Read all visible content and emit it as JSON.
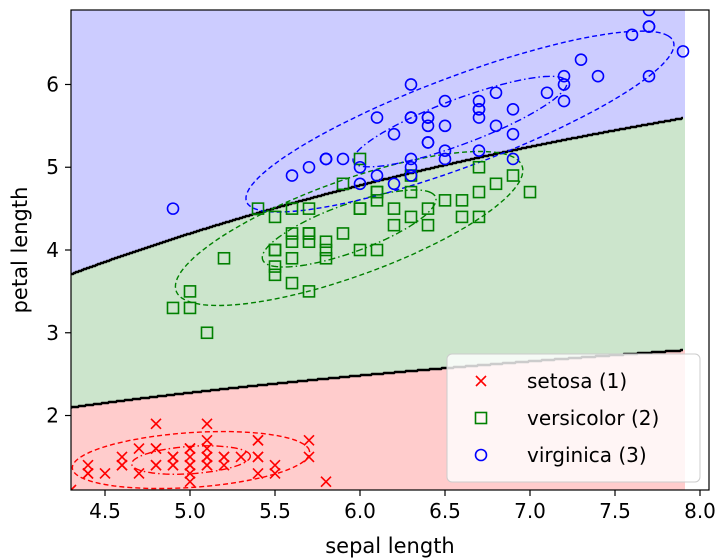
{
  "chart_data": {
    "type": "scatter",
    "title": "",
    "xlabel": "sepal length",
    "ylabel": "petal length",
    "xlim": [
      4.3,
      7.9
    ],
    "ylim": [
      1.1,
      6.9
    ],
    "xticks": [
      4.5,
      5.0,
      5.5,
      6.0,
      6.5,
      7.0,
      7.5,
      8.0
    ],
    "xtick_labels": [
      "4.5",
      "5.0",
      "5.5",
      "6.0",
      "6.5",
      "7.0",
      "7.5",
      "8.0"
    ],
    "yticks": [
      2,
      3,
      4,
      5,
      6
    ],
    "ytick_labels": [
      "2",
      "3",
      "4",
      "5",
      "6"
    ],
    "grid": false,
    "legend_position": "bottom-right",
    "region_colors": {
      "setosa": "#ffcccc",
      "versicolor": "#cce5cc",
      "virginica": "#ccccff"
    },
    "boundary_color": "#000000",
    "series": [
      {
        "name": "setosa (1)",
        "marker": "x",
        "color": "#ff0000",
        "points": [
          [
            5.1,
            1.4
          ],
          [
            4.9,
            1.4
          ],
          [
            4.7,
            1.3
          ],
          [
            4.6,
            1.5
          ],
          [
            5.0,
            1.4
          ],
          [
            5.4,
            1.7
          ],
          [
            4.6,
            1.4
          ],
          [
            5.0,
            1.5
          ],
          [
            4.4,
            1.4
          ],
          [
            4.9,
            1.5
          ],
          [
            5.4,
            1.5
          ],
          [
            4.8,
            1.6
          ],
          [
            4.8,
            1.4
          ],
          [
            4.3,
            1.1
          ],
          [
            5.8,
            1.2
          ],
          [
            5.7,
            1.5
          ],
          [
            5.4,
            1.3
          ],
          [
            5.1,
            1.4
          ],
          [
            5.7,
            1.7
          ],
          [
            5.1,
            1.5
          ],
          [
            5.4,
            1.7
          ],
          [
            5.1,
            1.5
          ],
          [
            4.6,
            1.0
          ],
          [
            5.1,
            1.7
          ],
          [
            4.8,
            1.9
          ],
          [
            5.0,
            1.6
          ],
          [
            5.0,
            1.6
          ],
          [
            5.2,
            1.5
          ],
          [
            5.2,
            1.4
          ],
          [
            4.7,
            1.6
          ],
          [
            4.8,
            1.6
          ],
          [
            5.4,
            1.5
          ],
          [
            5.2,
            1.5
          ],
          [
            5.5,
            1.4
          ],
          [
            4.9,
            1.5
          ],
          [
            5.0,
            1.2
          ],
          [
            5.5,
            1.3
          ],
          [
            4.9,
            1.4
          ],
          [
            4.4,
            1.3
          ],
          [
            5.1,
            1.5
          ],
          [
            5.0,
            1.3
          ],
          [
            4.5,
            1.3
          ],
          [
            4.4,
            1.3
          ],
          [
            5.0,
            1.6
          ],
          [
            5.1,
            1.9
          ],
          [
            4.8,
            1.4
          ],
          [
            5.1,
            1.6
          ],
          [
            4.6,
            1.4
          ],
          [
            5.3,
            1.5
          ],
          [
            5.0,
            1.4
          ]
        ]
      },
      {
        "name": "versicolor (2)",
        "marker": "s",
        "color": "#008000",
        "points": [
          [
            7.0,
            4.7
          ],
          [
            6.4,
            4.5
          ],
          [
            6.9,
            4.9
          ],
          [
            5.5,
            4.0
          ],
          [
            6.5,
            4.6
          ],
          [
            5.7,
            4.5
          ],
          [
            6.3,
            4.7
          ],
          [
            4.9,
            3.3
          ],
          [
            6.6,
            4.6
          ],
          [
            5.2,
            3.9
          ],
          [
            5.0,
            3.5
          ],
          [
            5.9,
            4.2
          ],
          [
            6.0,
            4.0
          ],
          [
            6.1,
            4.7
          ],
          [
            5.6,
            3.6
          ],
          [
            6.7,
            4.4
          ],
          [
            5.6,
            4.5
          ],
          [
            5.8,
            4.1
          ],
          [
            6.2,
            4.5
          ],
          [
            5.6,
            3.9
          ],
          [
            5.9,
            4.8
          ],
          [
            6.1,
            4.0
          ],
          [
            6.3,
            4.9
          ],
          [
            6.1,
            4.7
          ],
          [
            6.4,
            4.3
          ],
          [
            6.6,
            4.4
          ],
          [
            6.8,
            4.8
          ],
          [
            6.7,
            5.0
          ],
          [
            6.0,
            4.5
          ],
          [
            5.7,
            3.5
          ],
          [
            5.5,
            3.8
          ],
          [
            5.5,
            3.7
          ],
          [
            5.8,
            3.9
          ],
          [
            6.0,
            5.1
          ],
          [
            5.4,
            4.5
          ],
          [
            6.0,
            4.5
          ],
          [
            6.7,
            4.7
          ],
          [
            6.3,
            4.4
          ],
          [
            5.6,
            4.1
          ],
          [
            5.5,
            4.0
          ],
          [
            5.5,
            4.4
          ],
          [
            6.1,
            4.6
          ],
          [
            5.8,
            4.0
          ],
          [
            5.0,
            3.3
          ],
          [
            5.6,
            4.2
          ],
          [
            5.7,
            4.2
          ],
          [
            5.7,
            4.2
          ],
          [
            6.2,
            4.3
          ],
          [
            5.1,
            3.0
          ],
          [
            5.7,
            4.1
          ]
        ]
      },
      {
        "name": "virginica (3)",
        "marker": "o",
        "color": "#0000ff",
        "points": [
          [
            6.3,
            6.0
          ],
          [
            5.8,
            5.1
          ],
          [
            7.1,
            5.9
          ],
          [
            6.3,
            5.6
          ],
          [
            6.5,
            5.8
          ],
          [
            7.6,
            6.6
          ],
          [
            4.9,
            4.5
          ],
          [
            7.3,
            6.3
          ],
          [
            6.7,
            5.8
          ],
          [
            7.2,
            6.1
          ],
          [
            6.5,
            5.1
          ],
          [
            6.4,
            5.3
          ],
          [
            6.8,
            5.5
          ],
          [
            5.7,
            5.0
          ],
          [
            5.8,
            5.1
          ],
          [
            6.4,
            5.3
          ],
          [
            6.5,
            5.5
          ],
          [
            7.7,
            6.7
          ],
          [
            7.7,
            6.9
          ],
          [
            6.0,
            5.0
          ],
          [
            6.9,
            5.7
          ],
          [
            5.6,
            4.9
          ],
          [
            7.7,
            6.7
          ],
          [
            6.3,
            4.9
          ],
          [
            6.7,
            5.7
          ],
          [
            7.2,
            6.0
          ],
          [
            6.2,
            4.8
          ],
          [
            6.1,
            4.9
          ],
          [
            6.4,
            5.6
          ],
          [
            7.2,
            5.8
          ],
          [
            7.4,
            6.1
          ],
          [
            7.9,
            6.4
          ],
          [
            6.4,
            5.6
          ],
          [
            6.3,
            5.1
          ],
          [
            6.1,
            5.6
          ],
          [
            7.7,
            6.1
          ],
          [
            6.3,
            5.6
          ],
          [
            6.4,
            5.5
          ],
          [
            6.0,
            4.8
          ],
          [
            6.9,
            5.4
          ],
          [
            6.7,
            5.6
          ],
          [
            6.9,
            5.1
          ],
          [
            5.8,
            5.1
          ],
          [
            6.8,
            5.9
          ],
          [
            6.7,
            5.7
          ],
          [
            6.7,
            5.2
          ],
          [
            6.3,
            5.0
          ],
          [
            6.5,
            5.2
          ],
          [
            6.2,
            5.4
          ],
          [
            5.9,
            5.1
          ]
        ]
      }
    ],
    "gaussian_ellipses": [
      {
        "class": "setosa (1)",
        "color": "#ff0000",
        "mean": [
          5.006,
          1.462
        ],
        "cov": [
          [
            0.1218,
            0.0161
          ],
          [
            0.0161,
            0.0296
          ]
        ],
        "linestyle": "dashed"
      },
      {
        "class": "versicolor (2)",
        "color": "#008000",
        "mean": [
          5.936,
          4.26
        ],
        "cov": [
          [
            0.2611,
            0.1792
          ],
          [
            0.1792,
            0.2164
          ]
        ],
        "linestyle": "dashed"
      },
      {
        "class": "virginica (3)",
        "color": "#0000ff",
        "mean": [
          6.588,
          5.552
        ],
        "cov": [
          [
            0.3963,
            0.2919
          ],
          [
            0.2919,
            0.2988
          ]
        ],
        "linestyle": "dashed"
      }
    ]
  }
}
